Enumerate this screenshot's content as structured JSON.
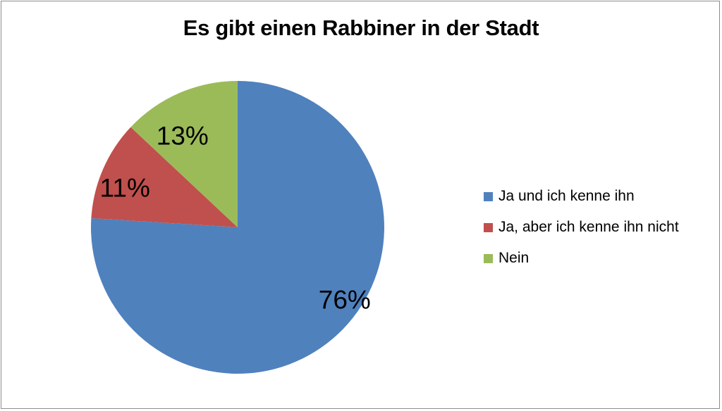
{
  "chart_data": {
    "type": "pie",
    "title": "Es gibt einen Rabbiner in der Stadt",
    "legend_position": "right",
    "slices": [
      {
        "name": "Ja und ich kenne ihn",
        "value": 76,
        "label": "76%",
        "color": "#4f81bd"
      },
      {
        "name": "Ja, aber ich kenne ihn nicht",
        "value": 11,
        "label": "11%",
        "color": "#c0504d"
      },
      {
        "name": "Nein",
        "value": 13,
        "label": "13%",
        "color": "#9bbb59"
      }
    ]
  }
}
